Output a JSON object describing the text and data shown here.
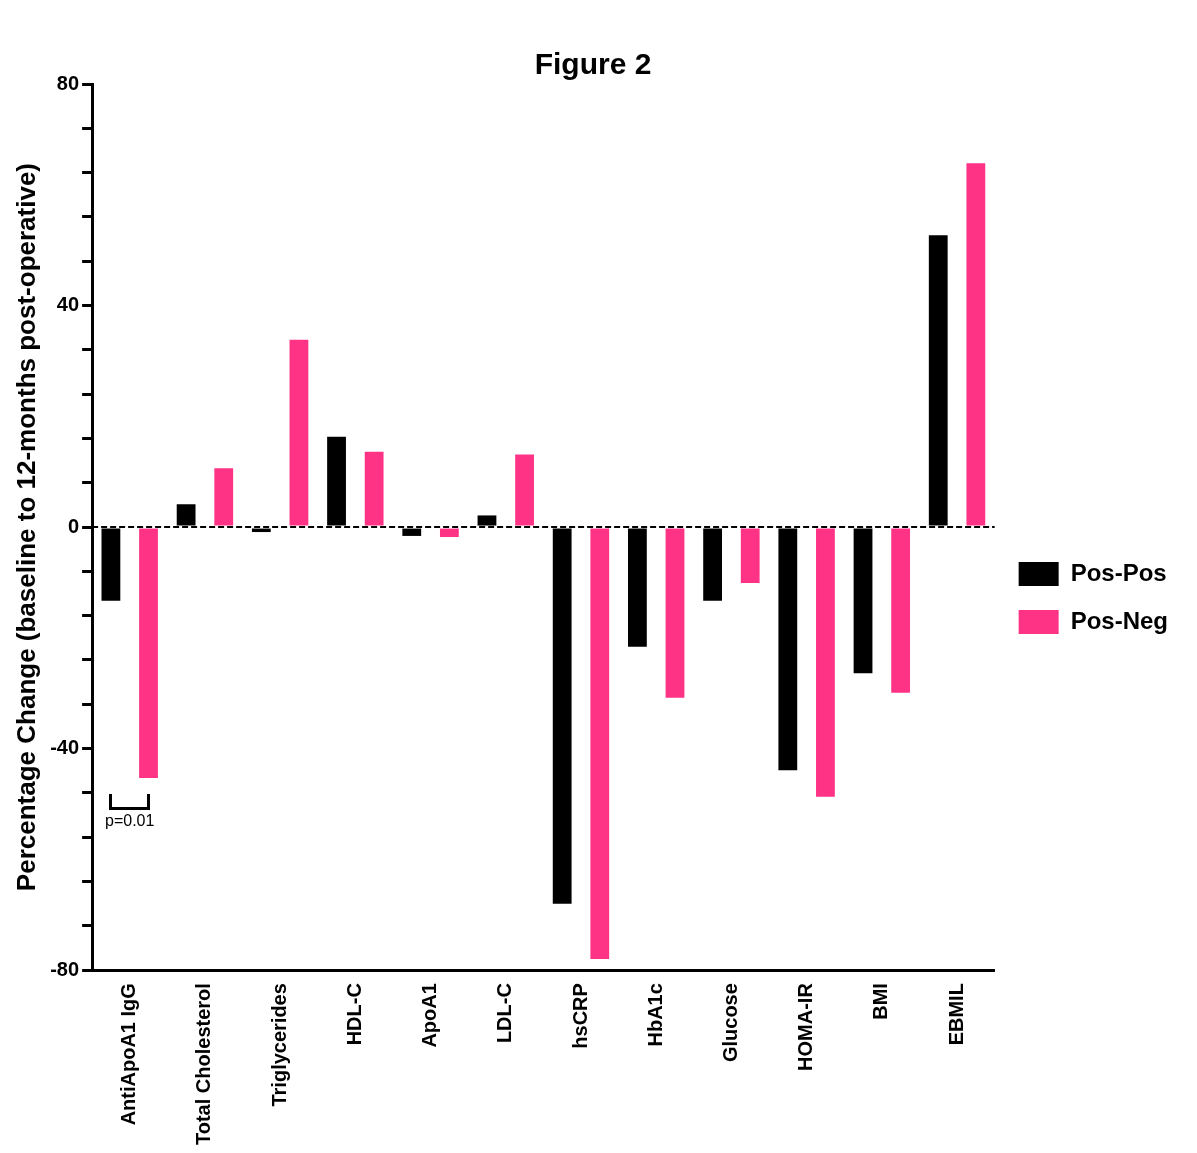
{
  "chart_data": {
    "type": "bar",
    "title": "Figure 2",
    "ylabel": "Percentage Change (baseline to 12-months post-operative)",
    "categories": [
      "AntiApoA1 IgG",
      "Total Cholesterol",
      "Triglycerides",
      "HDL-C",
      "ApoA1",
      "LDL-C",
      "hsCRP",
      "HbA1c",
      "Glucose",
      "HOMA-IR",
      "BMI",
      "EBMIL"
    ],
    "series": [
      {
        "name": "Pos-Pos",
        "color": "#000000",
        "values": [
          -13.3,
          4.1,
          -0.9,
          16.3,
          -1.6,
          2.1,
          -68,
          -21.6,
          -13.3,
          -43.9,
          -26.4,
          52.7
        ]
      },
      {
        "name": "Pos-Neg",
        "color": "#ff3385",
        "values": [
          -45.3,
          10.6,
          33.8,
          13.6,
          -1.8,
          13.1,
          -78,
          -30.8,
          -10.1,
          -48.7,
          -29.9,
          65.7
        ]
      }
    ],
    "ylim": [
      -80,
      80
    ],
    "yticks": [
      -80,
      {
        "value": -72,
        "label": null
      },
      {
        "value": -64,
        "label": null
      },
      {
        "value": -56,
        "label": null
      },
      {
        "value": -48,
        "label": null
      },
      -40,
      {
        "value": -32,
        "label": null
      },
      {
        "value": -24,
        "label": null
      },
      {
        "value": -16,
        "label": null
      },
      {
        "value": -8,
        "label": null
      },
      0,
      {
        "value": 8,
        "label": null
      },
      {
        "value": 16,
        "label": null
      },
      {
        "value": 24,
        "label": null
      },
      {
        "value": 32,
        "label": null
      },
      40,
      {
        "value": 48,
        "label": null
      },
      {
        "value": 56,
        "label": null
      },
      {
        "value": 64,
        "label": null
      },
      {
        "value": 72,
        "label": null
      },
      80
    ],
    "ref_lines": [
      {
        "axis": "y",
        "value": 0,
        "color": "#000000",
        "line_style": "dashed"
      }
    ],
    "annotations": [
      "p=0.01"
    ],
    "legend": "right",
    "grid": false
  }
}
